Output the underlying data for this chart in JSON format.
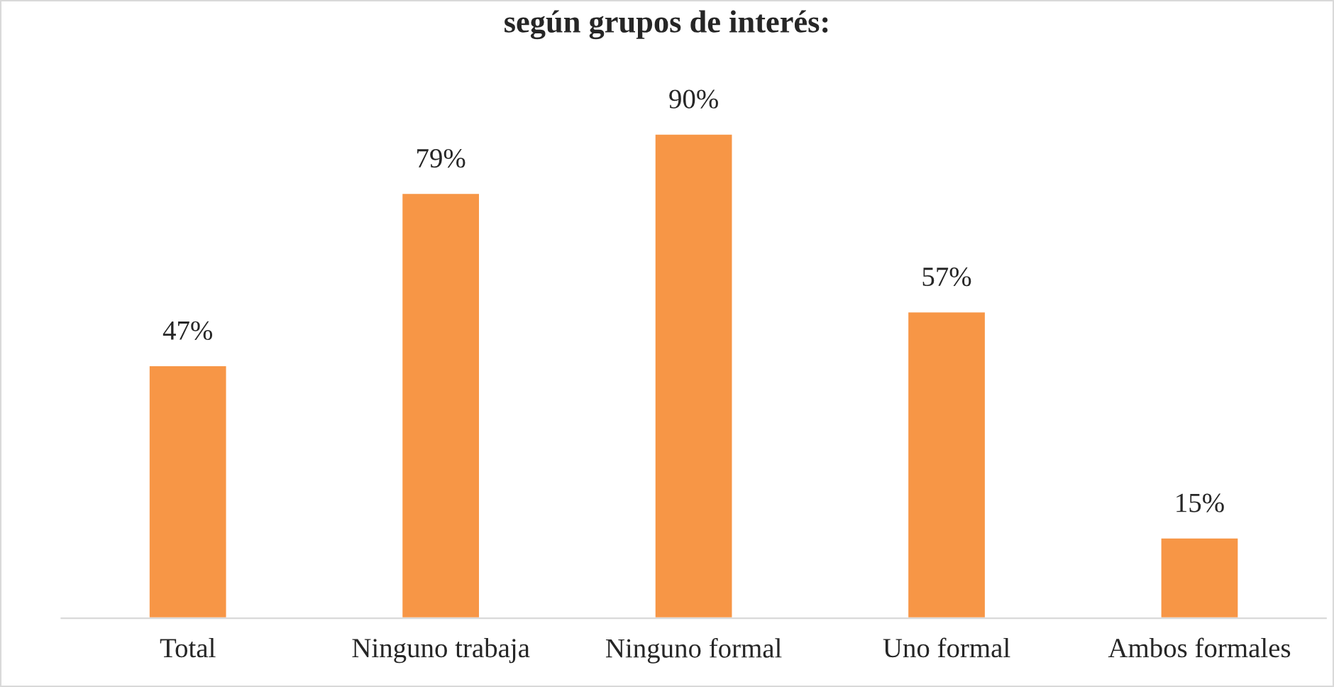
{
  "chart_data": {
    "type": "bar",
    "title": "según grupos de interés:",
    "categories": [
      "Total",
      "Ninguno trabaja",
      "Ninguno formal",
      "Uno formal",
      "Ambos formales"
    ],
    "values": [
      47,
      79,
      90,
      57,
      15
    ],
    "value_labels": [
      "47%",
      "79%",
      "90%",
      "57%",
      "15%"
    ],
    "color": "#f79646",
    "grid": false,
    "legend": false,
    "tick_labels": "x"
  }
}
